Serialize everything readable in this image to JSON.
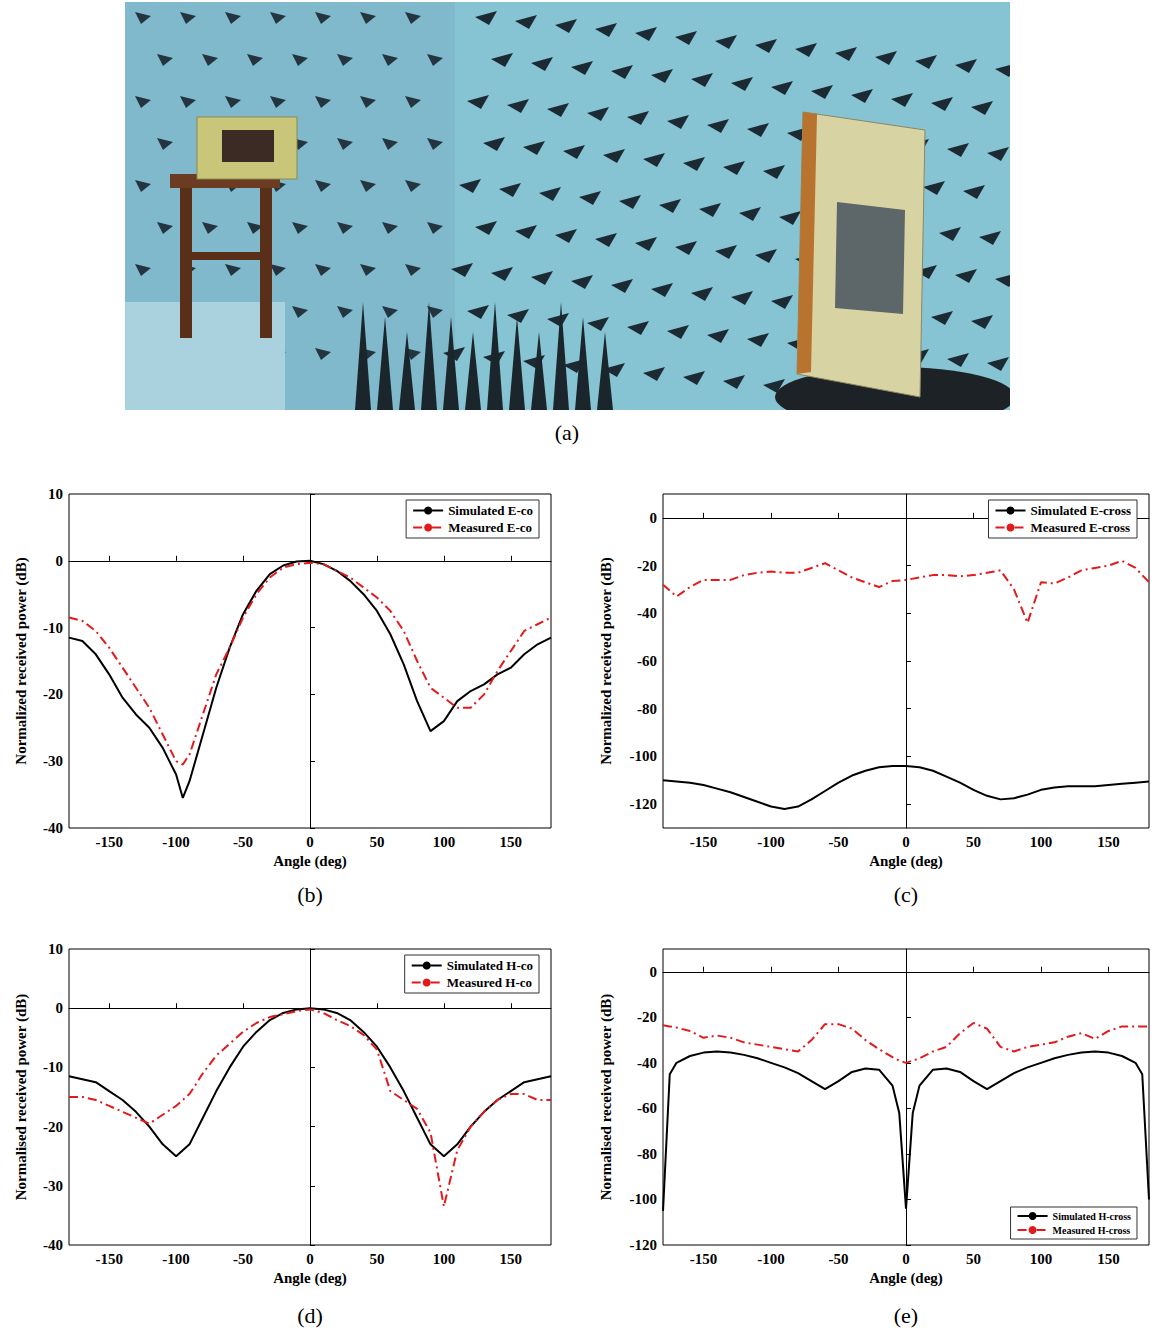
{
  "figure": {
    "photo": {
      "caption": "(a)"
    }
  },
  "chart_data": [
    {
      "type": "line",
      "caption": "(b)",
      "x_label": "Angle (deg)",
      "y_label": "Normalized received power (dB)",
      "xlim": [
        -180,
        180
      ],
      "xticks": [
        -150,
        -100,
        -50,
        0,
        50,
        100,
        150
      ],
      "ylim": [
        -40,
        10
      ],
      "yticks": [
        -40,
        -30,
        -20,
        -10,
        0,
        10
      ],
      "grid": false,
      "legend": "upper right",
      "x": [
        -180,
        -170,
        -160,
        -150,
        -140,
        -130,
        -120,
        -110,
        -100,
        -95,
        -90,
        -80,
        -70,
        -60,
        -50,
        -40,
        -30,
        -20,
        -10,
        0,
        10,
        20,
        30,
        40,
        50,
        60,
        70,
        80,
        90,
        100,
        110,
        120,
        130,
        140,
        150,
        160,
        170,
        180
      ],
      "series": [
        {
          "name": "Simulated E-co",
          "color": "#000000",
          "line_style": "solid",
          "values": [
            -11.5,
            -12,
            -14,
            -17,
            -20.5,
            -23,
            -25,
            -28,
            -32,
            -35.5,
            -33,
            -26,
            -19,
            -13,
            -8,
            -4.5,
            -2,
            -0.7,
            -0.1,
            0,
            -0.5,
            -1.5,
            -3,
            -5,
            -7.5,
            -11,
            -15.5,
            -21,
            -25.5,
            -24,
            -21,
            -19.5,
            -18.5,
            -17,
            -16,
            -14,
            -12.5,
            -11.5
          ]
        },
        {
          "name": "Measured E-co",
          "color": "#e31a1c",
          "line_style": "dashdot",
          "values": [
            -8.5,
            -9,
            -10.5,
            -13,
            -16,
            -19,
            -22,
            -26,
            -30,
            -30.5,
            -29,
            -23,
            -17,
            -13,
            -8.5,
            -5,
            -2.5,
            -1,
            -0.5,
            -0.3,
            -0.5,
            -1.5,
            -2.5,
            -4,
            -5.5,
            -7.5,
            -10.5,
            -15,
            -19,
            -20.5,
            -22,
            -22,
            -20,
            -16.5,
            -13.5,
            -10.5,
            -9.5,
            -8.5
          ]
        }
      ]
    },
    {
      "type": "line",
      "caption": "(c)",
      "x_label": "Angle (deg)",
      "y_label": "Normalized received power (dB)",
      "xlim": [
        -180,
        180
      ],
      "xticks": [
        -150,
        -100,
        -50,
        0,
        50,
        100,
        150
      ],
      "ylim": [
        -130,
        10
      ],
      "yticks": [
        -120,
        -100,
        -80,
        -60,
        -40,
        -20,
        0
      ],
      "grid": false,
      "legend": "upper right",
      "x": [
        -180,
        -170,
        -160,
        -150,
        -140,
        -130,
        -120,
        -110,
        -100,
        -90,
        -80,
        -70,
        -60,
        -50,
        -40,
        -30,
        -20,
        -10,
        0,
        10,
        20,
        30,
        40,
        50,
        60,
        70,
        80,
        90,
        100,
        110,
        120,
        130,
        140,
        150,
        160,
        170,
        180
      ],
      "series": [
        {
          "name": "Simulated E-cross",
          "color": "#000000",
          "line_style": "solid",
          "values": [
            -110,
            -110.5,
            -111,
            -112,
            -113.5,
            -115,
            -117,
            -119,
            -121,
            -122,
            -121,
            -118,
            -114.5,
            -111,
            -108,
            -106,
            -104.5,
            -104,
            -104,
            -104.5,
            -106,
            -108.5,
            -111,
            -114,
            -116.5,
            -118,
            -117.5,
            -116,
            -114,
            -113,
            -112.5,
            -112.5,
            -112.5,
            -112,
            -111.5,
            -111,
            -110.5
          ]
        },
        {
          "name": "Measured E-cross",
          "color": "#e31a1c",
          "line_style": "dashdot",
          "values": [
            -28,
            -33,
            -29,
            -26,
            -26,
            -26,
            -24,
            -23,
            -22.5,
            -23,
            -23,
            -21,
            -19,
            -22,
            -25,
            -27,
            -29,
            -26.5,
            -26,
            -25,
            -24,
            -24,
            -24.5,
            -24,
            -23,
            -22,
            -30,
            -44,
            -27,
            -27.5,
            -25,
            -22,
            -21,
            -20,
            -18,
            -21,
            -27
          ]
        }
      ]
    },
    {
      "type": "line",
      "caption": "(d)",
      "x_label": "Angle (deg)",
      "y_label": "Normalised received power (dB)",
      "xlim": [
        -180,
        180
      ],
      "xticks": [
        -150,
        -100,
        -50,
        0,
        50,
        100,
        150
      ],
      "ylim": [
        -40,
        10
      ],
      "yticks": [
        -40,
        -30,
        -20,
        -10,
        0,
        10
      ],
      "grid": false,
      "legend": "upper right",
      "x": [
        -180,
        -170,
        -160,
        -150,
        -140,
        -130,
        -120,
        -110,
        -100,
        -90,
        -80,
        -70,
        -60,
        -50,
        -40,
        -30,
        -20,
        -10,
        0,
        10,
        20,
        30,
        40,
        50,
        60,
        70,
        80,
        90,
        100,
        110,
        120,
        130,
        140,
        150,
        160,
        170,
        180
      ],
      "series": [
        {
          "name": "Simulated H-co",
          "color": "#000000",
          "line_style": "solid",
          "values": [
            -11.5,
            -12,
            -12.5,
            -14,
            -15.5,
            -17.5,
            -20,
            -23,
            -25,
            -23,
            -18.5,
            -14,
            -10,
            -6.5,
            -4,
            -2,
            -0.8,
            -0.2,
            0,
            -0.2,
            -0.8,
            -2,
            -4,
            -6.5,
            -10,
            -14,
            -18.5,
            -23,
            -25,
            -23,
            -20,
            -17.5,
            -15.5,
            -14,
            -12.5,
            -12,
            -11.5
          ]
        },
        {
          "name": "Measured H-co",
          "color": "#e31a1c",
          "line_style": "dashdot",
          "values": [
            -15,
            -15,
            -15.5,
            -16.5,
            -17.5,
            -18.5,
            -19.5,
            -18,
            -16.5,
            -14.5,
            -11,
            -8,
            -6,
            -4,
            -2.5,
            -1.5,
            -1,
            -0.5,
            -0.2,
            -0.8,
            -2,
            -3,
            -4.5,
            -7,
            -14,
            -15.5,
            -17,
            -21,
            -33.5,
            -24,
            -20,
            -17.5,
            -15.5,
            -14.5,
            -14.5,
            -15.5,
            -15.5
          ]
        }
      ]
    },
    {
      "type": "line",
      "caption": "(e)",
      "x_label": "Angle (deg)",
      "y_label": "Normalised received power (dB)",
      "xlim": [
        -180,
        180
      ],
      "xticks": [
        -150,
        -100,
        -50,
        0,
        50,
        100,
        150
      ],
      "ylim": [
        -120,
        10
      ],
      "yticks": [
        -120,
        -100,
        -80,
        -60,
        -40,
        -20,
        0
      ],
      "grid": false,
      "legend": "lower right",
      "x": [
        -180,
        -175,
        -170,
        -160,
        -150,
        -140,
        -130,
        -120,
        -110,
        -100,
        -90,
        -80,
        -70,
        -60,
        -50,
        -40,
        -30,
        -20,
        -10,
        -5,
        0,
        5,
        10,
        20,
        30,
        40,
        50,
        60,
        70,
        80,
        90,
        100,
        110,
        120,
        130,
        140,
        150,
        160,
        170,
        175,
        180
      ],
      "series": [
        {
          "name": "Simulated H-cross",
          "color": "#000000",
          "line_style": "solid",
          "values": [
            -105,
            -45,
            -40,
            -37,
            -35.5,
            -35,
            -35.5,
            -36.5,
            -38,
            -40,
            -42,
            -44.5,
            -48,
            -51.5,
            -48,
            -44,
            -42.5,
            -43,
            -50,
            -62,
            -104,
            -62,
            -50,
            -43,
            -42.5,
            -44,
            -48,
            -51.5,
            -48,
            -44.5,
            -42,
            -40,
            -38,
            -36.5,
            -35.5,
            -35,
            -35.5,
            -37,
            -40,
            -45,
            -100
          ]
        },
        {
          "name": "Measured H-cross",
          "color": "#e31a1c",
          "line_style": "dashdot",
          "values": [
            -23.5,
            -24,
            -24.5,
            -26,
            -29,
            -28,
            -29,
            -31,
            -32,
            -33,
            -34,
            -35,
            -30,
            -23,
            -23,
            -25,
            -30,
            -34,
            -37.5,
            -39,
            -40,
            -39,
            -38,
            -35,
            -33,
            -27,
            -22.5,
            -25,
            -33,
            -35,
            -33,
            -32,
            -31,
            -28.5,
            -27,
            -29.5,
            -26,
            -24,
            -24,
            -24,
            -24
          ]
        }
      ]
    }
  ]
}
